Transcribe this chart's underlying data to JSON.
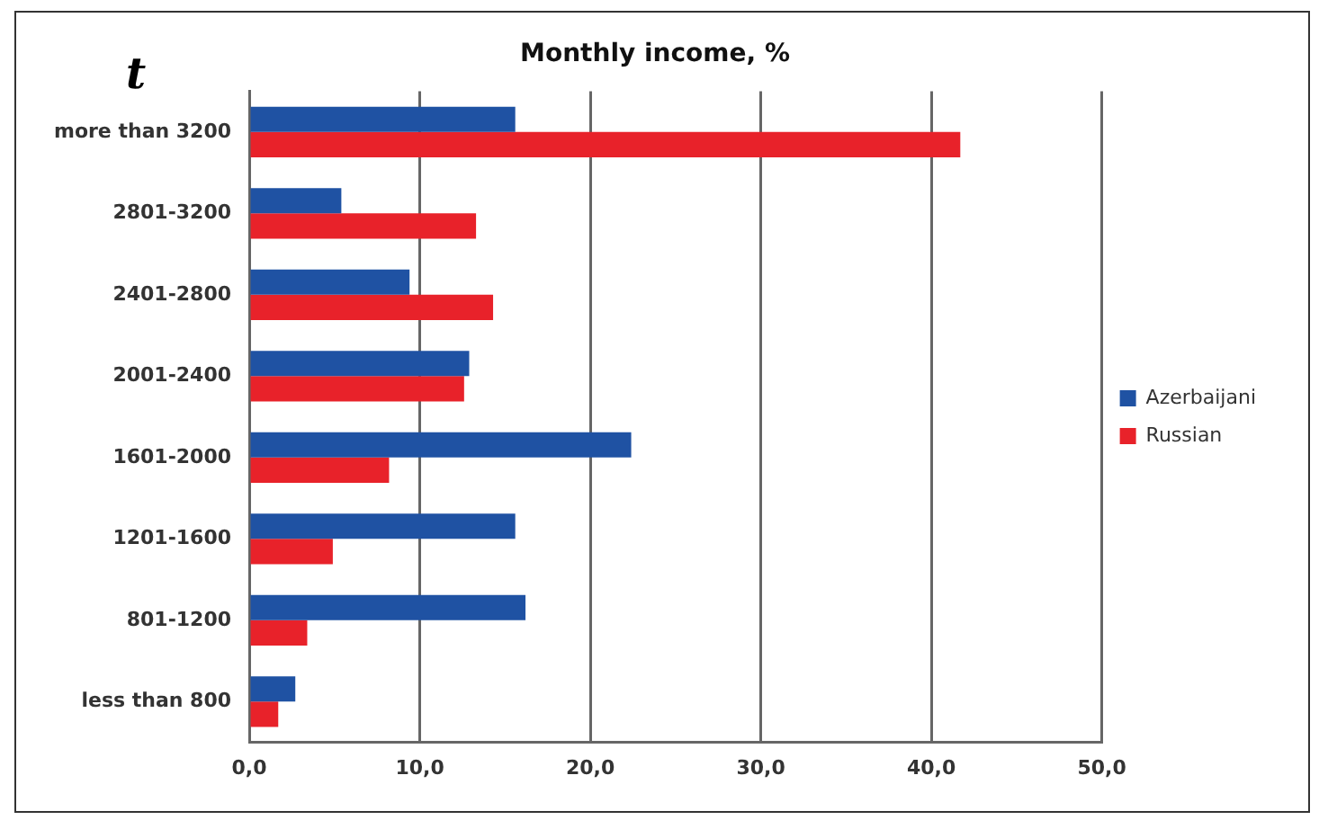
{
  "chart_data": {
    "type": "bar",
    "orientation": "horizontal",
    "title": "Monthly income, %",
    "annotations": [
      "t"
    ],
    "categories": [
      "more than 3200",
      "2801-3200",
      "2401-2800",
      "2001-2400",
      "1601-2000",
      "1201-1600",
      "801-1200",
      "less than 800"
    ],
    "series": [
      {
        "name": "Azerbaijani",
        "color": "#1f52a3",
        "values": [
          15.6,
          5.4,
          9.4,
          12.9,
          22.4,
          15.6,
          16.2,
          2.7
        ]
      },
      {
        "name": "Russian",
        "color": "#e8222a",
        "values": [
          41.7,
          13.3,
          14.3,
          12.6,
          8.2,
          4.9,
          3.4,
          1.7
        ]
      }
    ],
    "xlim": [
      0,
      50
    ],
    "xticks": [
      {
        "value": 0,
        "label": "0,0"
      },
      {
        "value": 10,
        "label": "10,0"
      },
      {
        "value": 20,
        "label": "20,0"
      },
      {
        "value": 30,
        "label": "30,0"
      },
      {
        "value": 40,
        "label": "40,0"
      },
      {
        "value": 50,
        "label": "50,0"
      }
    ],
    "grid": "x",
    "legend": "right"
  }
}
